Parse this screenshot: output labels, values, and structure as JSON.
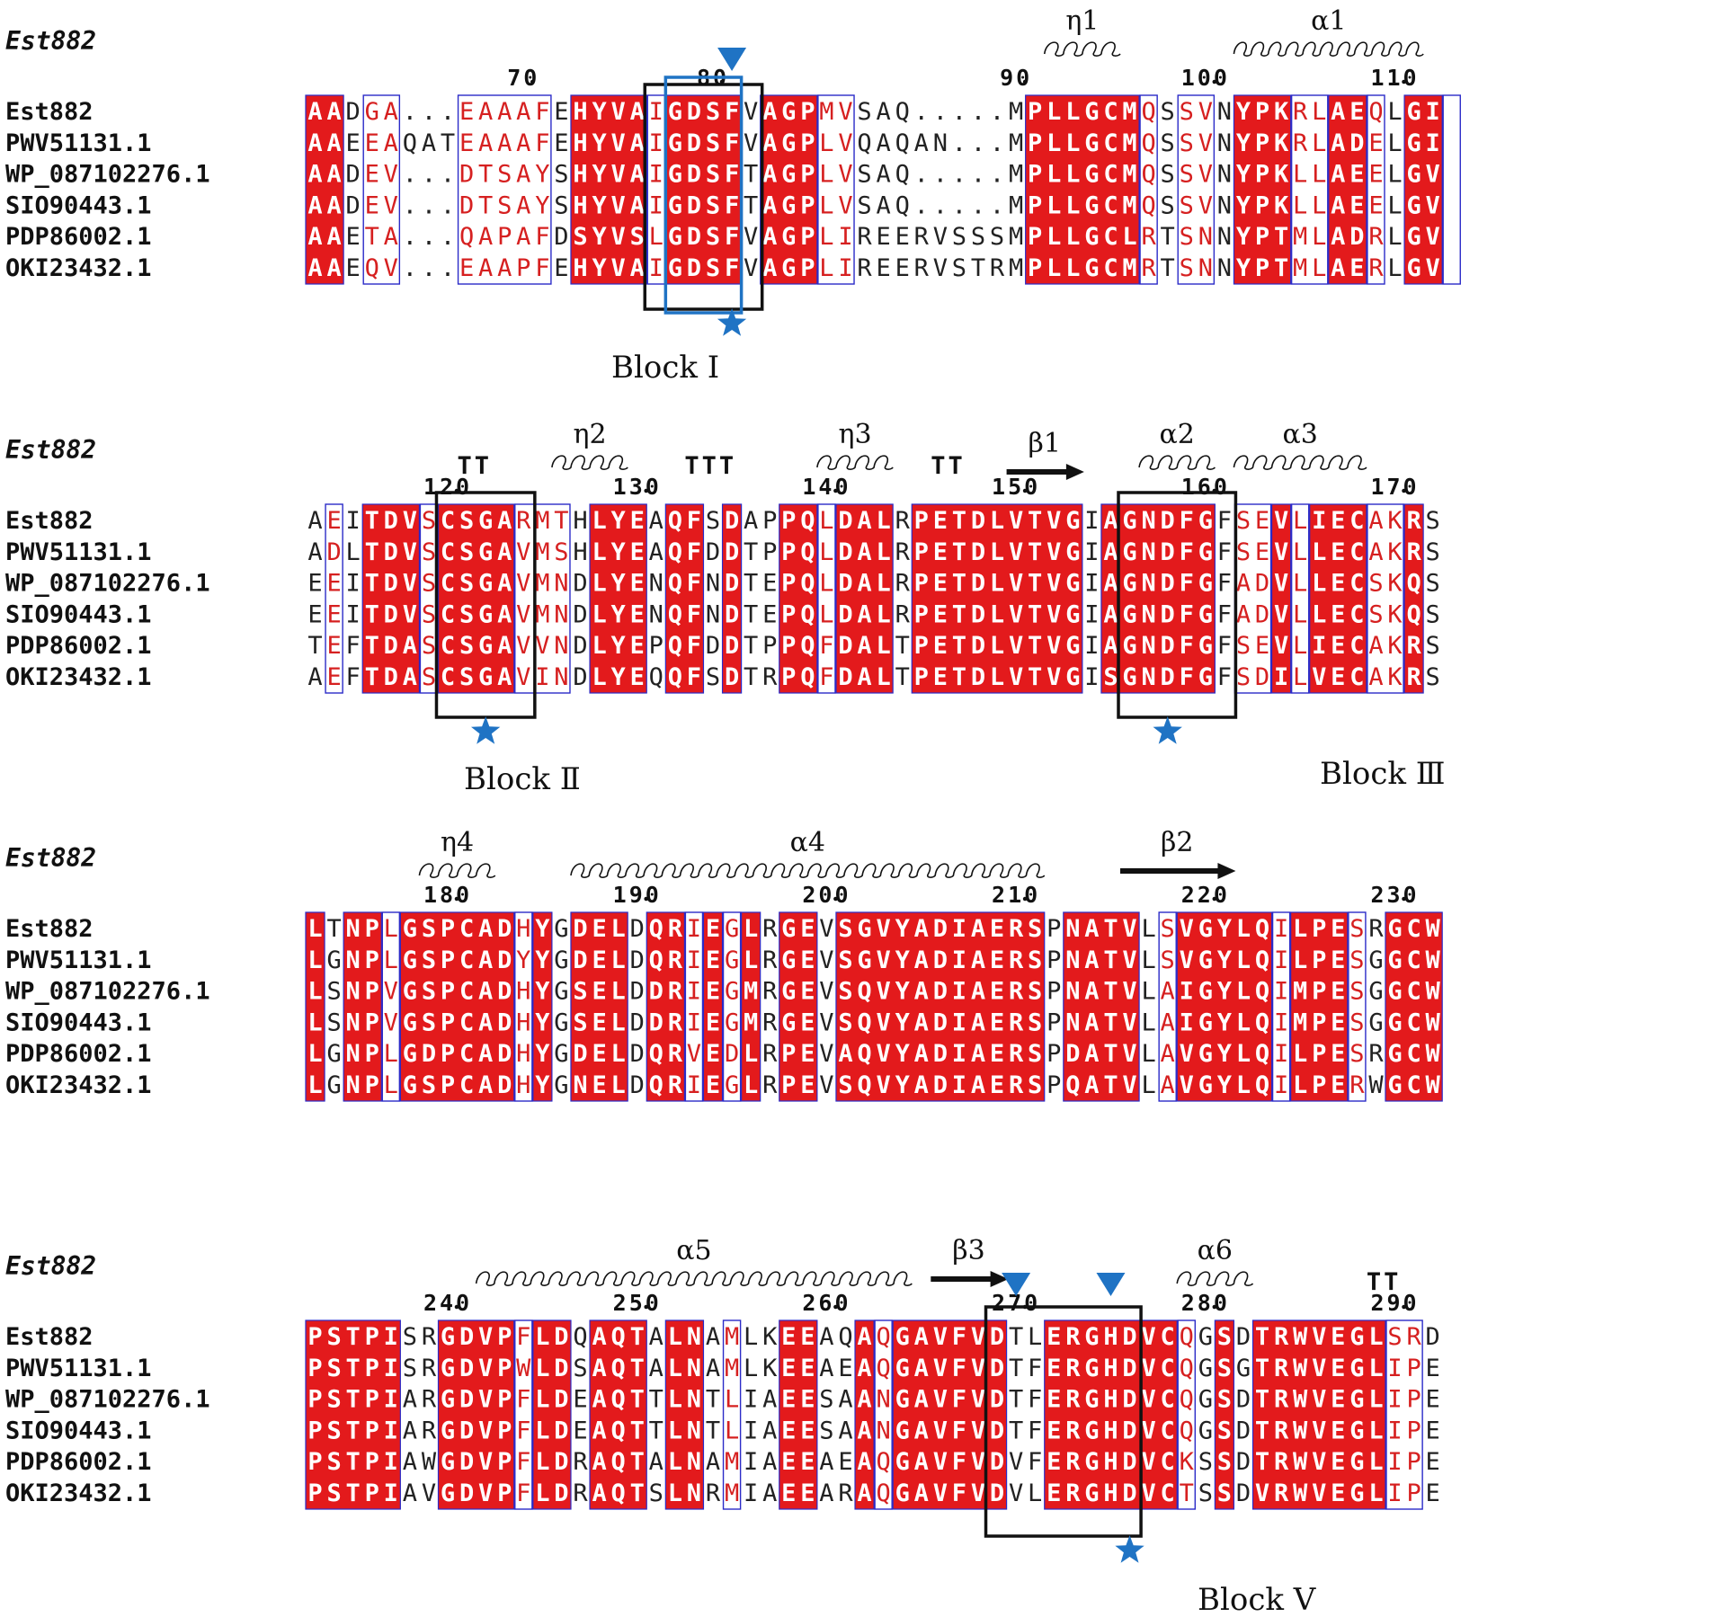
{
  "figure": {
    "structure_label": "Est882",
    "colors": {
      "identical_bg": "#e31a1c",
      "identical_fg": "#ffffff",
      "similar_fg": "#d62020",
      "similar_box": "#2b2bc8",
      "other_fg": "#222222",
      "block_box": "#111111",
      "marker": "#1f73c4"
    },
    "sequences": [
      "Est882",
      "PWV51131.1",
      "WP_087102276.1",
      "SIO90443.1",
      "PDP86002.1",
      "OKI23432.1"
    ],
    "blocks": [
      {
        "ruler_labels": [
          "70",
          "80",
          "90",
          "100",
          "110"
        ],
        "alignment": [
          "AADGA...EAAAFEHYVAIGDSFVAGPMVSAQ.....MPLLGCMQSSVNYPKRLAEQLGI",
          "AAEEAQATEAAAFEHYVAIGDSFVAGPLVQAQAN...MPLLGCMQSSVNYPKRLADELGI",
          "AADEV...DTSAYSHYVAIGDSFTAGPLVSAQ.....MPLLGCMQSSVNYPKLLAEELGV",
          "AADEV...DTSAYSHYVAIGDSFTAGPLVSAQ.....MPLLGCMQSSVNYPKLLAEELGV",
          "AAETA...QAPAFDSYVSLGDSFVAGPLIREERVSSSMPLLGCLRTSNNYPTMLADRLGV",
          "AAEQV...EAAPFEHYVAIGDSFVAGPLIREERVSTRMPLLGCMRTSNNYPTMLAERLGV"
        ],
        "class_map": "IIWSS...SSSSSWIIIISIIIIWIIISSWWWWWWWWWIIIIIISWSSWIIISSIISWIIS",
        "secondary": [
          {
            "type": "helix",
            "label": "η1"
          },
          {
            "type": "helix",
            "label": "α1"
          }
        ],
        "region": {
          "label": "Block Ⅰ"
        }
      },
      {
        "ruler_labels": [
          "120",
          "130",
          "140",
          "150",
          "160",
          "170"
        ],
        "alignment": [
          "AEITDVSCSGARMTHLYEAQFSDAPPQLDALRPETDLVTVGIAGNDFGFSEVLIECAKRS",
          "ADLTDVSCSGAVMSHLYEAQFDDTPPQLDALRPETDLVTVGIAGNDFGFSEVLLECAKRS",
          "EEITDVSCSGAVMNDLYENQFNDTEPQLDALRPETDLVTVGIAGNDFGFADVLLECSKQS",
          "EEITDVSCSGAVMNDLYENQFNDTEPQLDALRPETDLVTVGIAGNDFGFADVLLECSKQS",
          "TEFTDASCSGAVVNDLYEPQFDDTPPQFDALTPETDLVTVGIAGNDFGFSEVLIECAKRS",
          "AEFTDASCSGAVINDLYEQQFSDTRPQFDALTPETDLVTVGISGNDFGFSDILVECAKRS"
        ],
        "class_map": "WSWIIISIIIISSSWIIIWIIWIWWIISIIIWIIIIIIIIIWIIIIIIWSSISIIISSI",
        "secondary": [
          {
            "type": "turn",
            "label": "TT"
          },
          {
            "type": "helix",
            "label": "η2"
          },
          {
            "type": "turn",
            "label": "TTT"
          },
          {
            "type": "helix",
            "label": "η3"
          },
          {
            "type": "turn",
            "label": "TT"
          },
          {
            "type": "strand",
            "label": "β1"
          },
          {
            "type": "helix",
            "label": "α2"
          },
          {
            "type": "helix",
            "label": "α3"
          }
        ],
        "regions": [
          {
            "label": "Block Ⅱ"
          },
          {
            "label": "Block Ⅲ"
          }
        ]
      },
      {
        "ruler_labels": [
          "180",
          "190",
          "200",
          "210",
          "220",
          "230"
        ],
        "alignment": [
          "LTNPLGSPCADHYGDELDQRIEGLRGEVSGVYADIAERSPNATVLSVGYLQILPESRGCW",
          "LGNPLGSPCADYYGDELDQRIEGLRGEVSGVYADIAERSPNATVLSVGYLQILPESGGCW",
          "LSNPVGSPCADHYGSELDDRIEGMRGEVSQVYADIAERSPNATVLAIGYLQIMPESGGCW",
          "LSNPVGSPCADHYGSELDDRIEGMRGEVSQVYADIAERSPNATVLAIGYLQIMPESGGCW",
          "LGNPLGDPCADHYGDELDQRVEDLRPEVAQVYADIAERSPDATVLAVGYLQILPESRGCW",
          "LGNPLGSPCADHYGNELDQRIEGLRPEVSQVYADIAERSPQATVLAVGYLQILPERWGCW"
        ],
        "class_map": "IWIISIIIIIISIWIIIWIISISIWIIWIIIIIIIIIIIWIIIIWSIIIIISIIISWIII",
        "secondary": [
          {
            "type": "helix",
            "label": "η4"
          },
          {
            "type": "helix",
            "label": "α4"
          },
          {
            "type": "strand",
            "label": "β2"
          }
        ]
      },
      {
        "ruler_labels": [
          "240",
          "250",
          "260",
          "270",
          "280",
          "290"
        ],
        "alignment": [
          "PSTPISRGDVPFLDQAQTALNAMLKEEAQAQGAVFVDTLERGHDVCQGSDTRWVEGLSRD",
          "PSTPISRGDVPWLDSAQTALNAMLKEEAEAQGAVFVDTFERGHDVCQGSGTRWVEGLIPE",
          "PSTPIARGDVPFLDEAQTTLNTLIAEESAANGAVFVDTFERGHDVCQGSDTRWVEGLIPE",
          "PSTPIARGDVPFLDEAQTTLNTLIAEESAANGAVFVDTFERGHDVCQGSDTRWVEGLIPE",
          "PSTPIAWGDVPFLDRAQTALNAMIAEEAEAQGAVFVDVFERGHDVCKSSDTRWVEGLIPE",
          "PSTPIAVGDVPFLDRAQTSLNRMIAEEARAQGAVFVDVLERGHDVCTSSDVRWVEGLIPE"
        ],
        "class_map": "IIIIIWWIIIISIIWIIIWIIWSWWIIWWISIIIIIIWWIIIIIIISWIWIIIIIIISS",
        "secondary": [
          {
            "type": "helix",
            "label": "α5"
          },
          {
            "type": "strand",
            "label": "β3"
          },
          {
            "type": "helix",
            "label": "α6"
          },
          {
            "type": "turn",
            "label": "TT"
          }
        ],
        "region": {
          "label": "Block Ⅴ"
        }
      }
    ]
  }
}
